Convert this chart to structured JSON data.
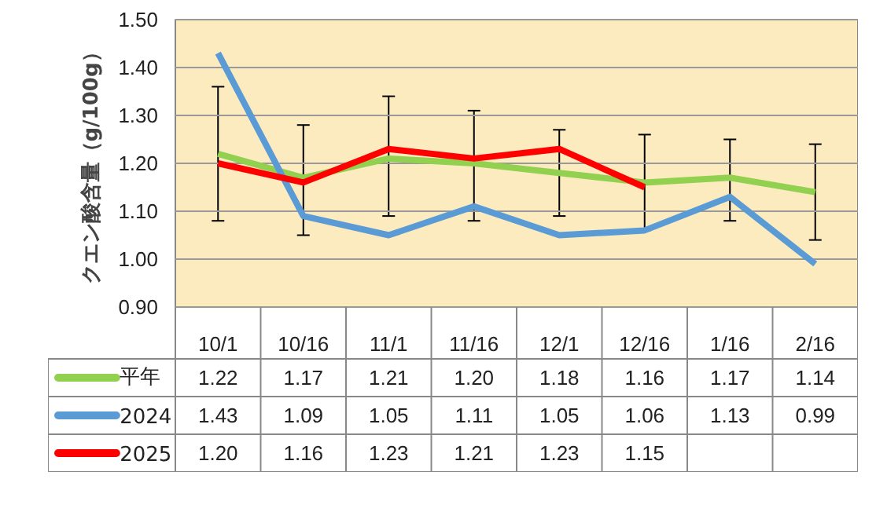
{
  "chart_data": {
    "type": "line",
    "ylabel": "クエン酸含量（g/100g）",
    "categories": [
      "10/1",
      "10/16",
      "11/1",
      "11/16",
      "12/1",
      "12/16",
      "1/16",
      "2/16"
    ],
    "series": [
      {
        "name": "平年",
        "color": "#92d050",
        "values": [
          1.22,
          1.17,
          1.21,
          1.2,
          1.18,
          1.16,
          1.17,
          1.14
        ],
        "value_labels": [
          "1.22",
          "1.17",
          "1.21",
          "1.20",
          "1.18",
          "1.16",
          "1.17",
          "1.14"
        ],
        "errors": [
          [
            1.08,
            1.36
          ],
          [
            1.05,
            1.28
          ],
          [
            1.09,
            1.34
          ],
          [
            1.08,
            1.31
          ],
          [
            1.09,
            1.27
          ],
          [
            1.06,
            1.26
          ],
          [
            1.08,
            1.25
          ],
          [
            1.04,
            1.24
          ]
        ]
      },
      {
        "name": "2024",
        "color": "#5b9bd5",
        "values": [
          1.43,
          1.09,
          1.05,
          1.11,
          1.05,
          1.06,
          1.13,
          0.99
        ],
        "value_labels": [
          "1.43",
          "1.09",
          "1.05",
          "1.11",
          "1.05",
          "1.06",
          "1.13",
          "0.99"
        ]
      },
      {
        "name": "2025",
        "color": "#ff0000",
        "values": [
          1.2,
          1.16,
          1.23,
          1.21,
          1.23,
          1.15,
          null,
          null
        ],
        "value_labels": [
          "1.20",
          "1.16",
          "1.23",
          "1.21",
          "1.23",
          "1.15",
          null,
          null
        ]
      }
    ],
    "ylim": [
      0.9,
      1.5
    ],
    "yticks": [
      {
        "value": 0.9,
        "label": "0.90"
      },
      {
        "value": 1.0,
        "label": "1.00"
      },
      {
        "value": 1.1,
        "label": "1.10"
      },
      {
        "value": 1.2,
        "label": "1.20"
      },
      {
        "value": 1.3,
        "label": "1.30"
      },
      {
        "value": 1.4,
        "label": "1.40"
      },
      {
        "value": 1.5,
        "label": "1.50"
      }
    ],
    "grid": "y",
    "legend": "bottom left"
  }
}
